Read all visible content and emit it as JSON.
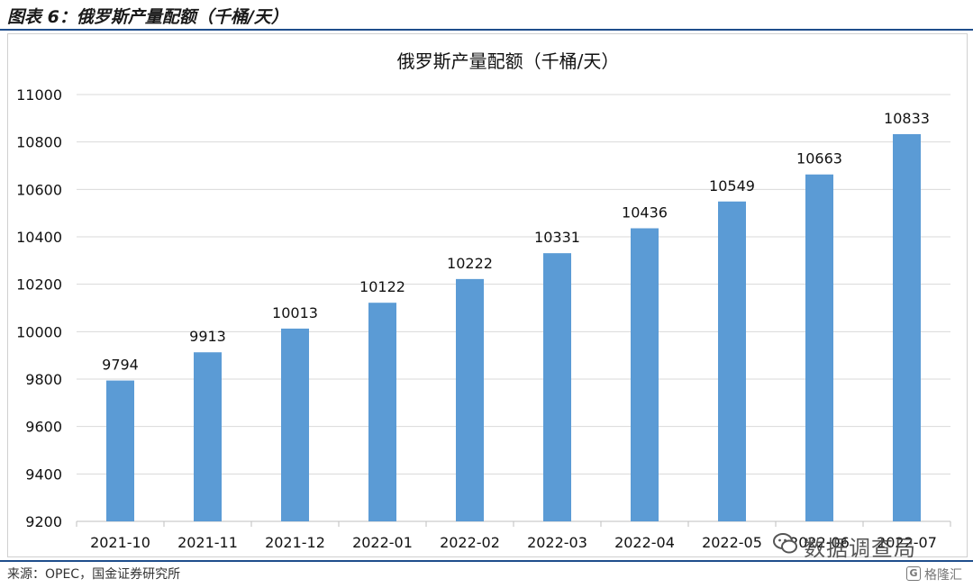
{
  "header": {
    "title": "图表 6：俄罗斯产量配额（千桶/天）"
  },
  "source": "来源：OPEC，国金证券研究所",
  "watermark": {
    "icon": "wechat-icon",
    "text": "数据调查局"
  },
  "logo": {
    "icon": "gelonghui-icon",
    "text": "格隆汇"
  },
  "colors": {
    "bar": "#5b9bd5",
    "rule": "#1f4e8c",
    "grid": "#d9d9d9"
  },
  "chart_data": {
    "type": "bar",
    "title": "俄罗斯产量配额（千桶/天）",
    "xlabel": "",
    "ylabel": "",
    "categories": [
      "2021-10",
      "2021-11",
      "2021-12",
      "2022-01",
      "2022-02",
      "2022-03",
      "2022-04",
      "2022-05",
      "2022-06",
      "2022-07"
    ],
    "values": [
      9794,
      9913,
      10013,
      10122,
      10222,
      10331,
      10436,
      10549,
      10663,
      10833
    ],
    "ylim": [
      9200,
      11000
    ],
    "yticks": [
      9200,
      9400,
      9600,
      9800,
      10000,
      10200,
      10400,
      10600,
      10800,
      11000
    ],
    "grid": true,
    "legend": "none",
    "data_labels": true
  }
}
